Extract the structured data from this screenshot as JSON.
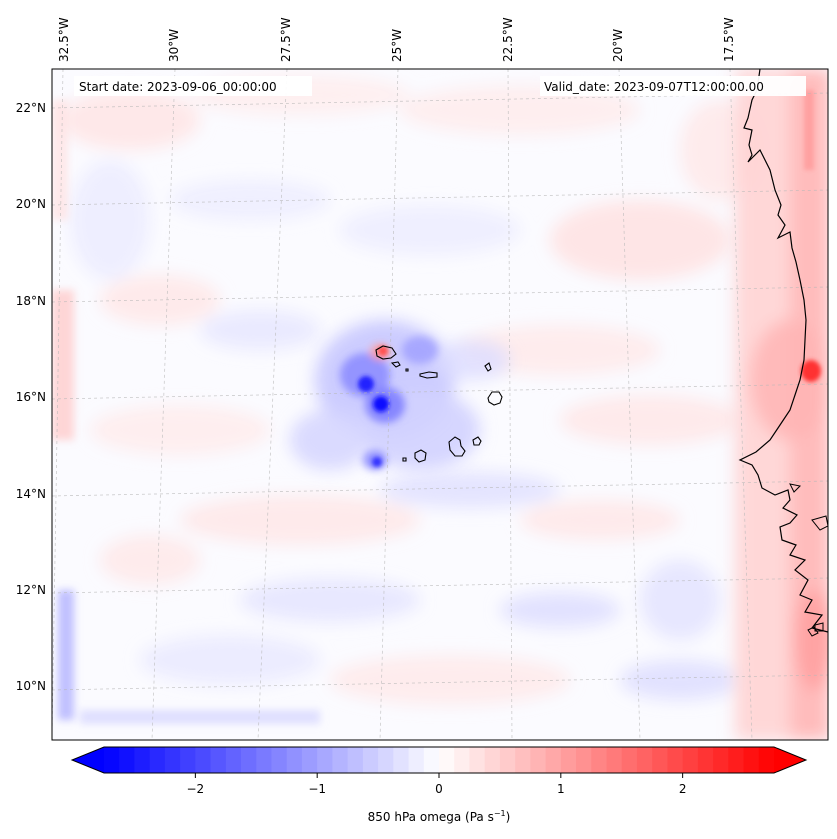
{
  "map": {
    "start_date_label": "Start date: 2023-09-06_00:00:00",
    "valid_date_label": "Valid_date: 2023-09-07T12:00:00.00",
    "longitude_ticks": [
      "32.5°W",
      "30°W",
      "27.5°W",
      "25°W",
      "22.5°W",
      "20°W",
      "17.5°W"
    ],
    "latitude_ticks": [
      "22°N",
      "20°N",
      "18°N",
      "16°N",
      "14°N",
      "12°N",
      "10°N"
    ],
    "gridlines": true,
    "gridline_style": "dashed-gray",
    "field": "850 hPa omega",
    "colormap": "bwr",
    "features": [
      "West African coastline",
      "Cape Verde islands"
    ]
  },
  "colorbar": {
    "label_main": "850 hPa omega (Pa s",
    "label_sup": "−1",
    "label_close": ")",
    "tick_labels": [
      "−2",
      "−1",
      "0",
      "1",
      "2"
    ],
    "tick_values": [
      -2,
      -1,
      0,
      1,
      2
    ],
    "range": [
      -2.75,
      2.75
    ],
    "extend": "both",
    "levels": 44,
    "colors": {
      "negative": "#0000ff",
      "zero": "#ffffff",
      "positive": "#ff0000"
    }
  }
}
